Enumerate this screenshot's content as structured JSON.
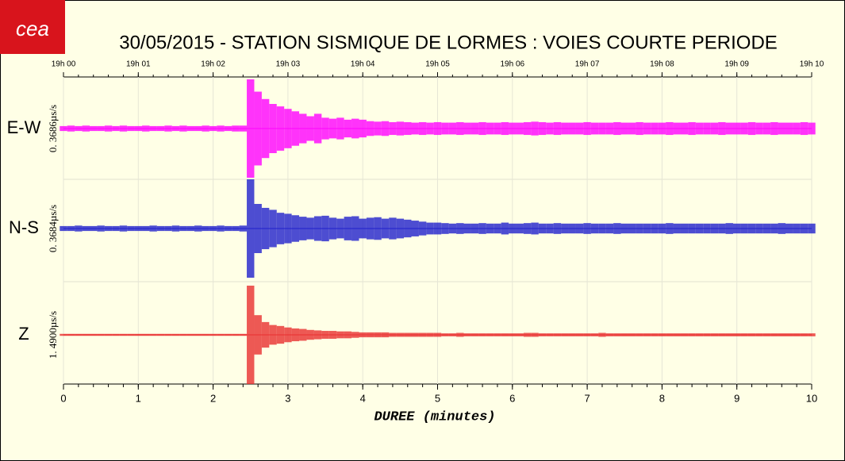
{
  "logo": "cea",
  "chart_data": {
    "type": "seismogram",
    "title": "30/05/2015  -  STATION SISMIQUE DE LORMES : VOIES COURTE PERIODE",
    "xlabel": "DUREE (minutes)",
    "xlim": [
      0,
      10
    ],
    "xticks": [
      0,
      1,
      2,
      3,
      4,
      5,
      6,
      7,
      8,
      9,
      10
    ],
    "x2ticks": [
      {
        "value": 0,
        "label": "19h 00"
      },
      {
        "value": 1,
        "label": "19h 01"
      },
      {
        "value": 2,
        "label": "19h 02"
      },
      {
        "value": 3,
        "label": "19h 03"
      },
      {
        "value": 4,
        "label": "19h 04"
      },
      {
        "value": 5,
        "label": "19h 05"
      },
      {
        "value": 6,
        "label": "19h 06"
      },
      {
        "value": 7,
        "label": "19h 07"
      },
      {
        "value": 8,
        "label": "19h 08"
      },
      {
        "value": 9,
        "label": "19h 09"
      },
      {
        "value": 10,
        "label": "19h 10"
      }
    ],
    "x": [
      0,
      0.1,
      0.2,
      0.3,
      0.4,
      0.5,
      0.6,
      0.7,
      0.8,
      0.9,
      1,
      1.1,
      1.2,
      1.3,
      1.4,
      1.5,
      1.6,
      1.7,
      1.8,
      1.9,
      2,
      2.1,
      2.2,
      2.3,
      2.4,
      2.5,
      2.6,
      2.7,
      2.8,
      2.9,
      3,
      3.1,
      3.2,
      3.3,
      3.4,
      3.5,
      3.6,
      3.7,
      3.8,
      3.9,
      4,
      4.1,
      4.2,
      4.3,
      4.4,
      4.5,
      4.6,
      4.7,
      4.8,
      4.9,
      5,
      5.1,
      5.2,
      5.3,
      5.4,
      5.5,
      5.6,
      5.7,
      5.8,
      5.9,
      6,
      6.1,
      6.2,
      6.3,
      6.4,
      6.5,
      6.6,
      6.7,
      6.8,
      6.9,
      7,
      7.1,
      7.2,
      7.3,
      7.4,
      7.5,
      7.6,
      7.7,
      7.8,
      7.9,
      8,
      8.1,
      8.2,
      8.3,
      8.4,
      8.5,
      8.6,
      8.7,
      8.8,
      8.9,
      9,
      9.1,
      9.2,
      9.3,
      9.4,
      9.5,
      9.6,
      9.7,
      9.8,
      9.9,
      10
    ],
    "series": [
      {
        "name": "E-W",
        "scale_label": "0. 3686µs/s",
        "color": "#ff00ff",
        "values": [
          0.05,
          0.06,
          0.05,
          0.06,
          0.05,
          0.05,
          0.06,
          0.05,
          0.06,
          0.05,
          0.05,
          0.06,
          0.05,
          0.05,
          0.06,
          0.05,
          0.06,
          0.05,
          0.05,
          0.06,
          0.05,
          0.06,
          0.05,
          0.06,
          0.06,
          1.0,
          0.75,
          0.6,
          0.5,
          0.45,
          0.4,
          0.35,
          0.3,
          0.25,
          0.3,
          0.22,
          0.2,
          0.22,
          0.18,
          0.2,
          0.18,
          0.15,
          0.14,
          0.15,
          0.13,
          0.14,
          0.13,
          0.12,
          0.13,
          0.12,
          0.13,
          0.12,
          0.12,
          0.13,
          0.12,
          0.12,
          0.13,
          0.12,
          0.12,
          0.13,
          0.12,
          0.12,
          0.13,
          0.14,
          0.13,
          0.12,
          0.13,
          0.12,
          0.12,
          0.12,
          0.13,
          0.12,
          0.12,
          0.12,
          0.13,
          0.12,
          0.12,
          0.13,
          0.12,
          0.12,
          0.12,
          0.13,
          0.12,
          0.12,
          0.13,
          0.12,
          0.12,
          0.12,
          0.13,
          0.12,
          0.12,
          0.12,
          0.13,
          0.12,
          0.12,
          0.13,
          0.12,
          0.12,
          0.12,
          0.13,
          0.12
        ]
      },
      {
        "name": "N-S",
        "scale_label": "0. 3684µs/s",
        "color": "#2020cc",
        "values": [
          0.05,
          0.05,
          0.06,
          0.05,
          0.05,
          0.06,
          0.05,
          0.05,
          0.06,
          0.05,
          0.05,
          0.05,
          0.06,
          0.05,
          0.05,
          0.06,
          0.05,
          0.05,
          0.06,
          0.05,
          0.05,
          0.06,
          0.05,
          0.05,
          0.06,
          1.0,
          0.5,
          0.42,
          0.38,
          0.32,
          0.3,
          0.27,
          0.24,
          0.22,
          0.25,
          0.26,
          0.22,
          0.2,
          0.24,
          0.25,
          0.2,
          0.22,
          0.23,
          0.2,
          0.22,
          0.2,
          0.18,
          0.16,
          0.14,
          0.12,
          0.12,
          0.11,
          0.1,
          0.11,
          0.1,
          0.1,
          0.11,
          0.1,
          0.1,
          0.12,
          0.1,
          0.1,
          0.11,
          0.12,
          0.1,
          0.1,
          0.11,
          0.1,
          0.1,
          0.1,
          0.11,
          0.1,
          0.1,
          0.1,
          0.11,
          0.1,
          0.1,
          0.1,
          0.1,
          0.1,
          0.1,
          0.11,
          0.1,
          0.1,
          0.1,
          0.1,
          0.1,
          0.1,
          0.1,
          0.11,
          0.1,
          0.1,
          0.1,
          0.1,
          0.1,
          0.1,
          0.11,
          0.1,
          0.1,
          0.1,
          0.1
        ]
      },
      {
        "name": "Z",
        "scale_label": "1. 4900µs/s",
        "color": "#e83030",
        "values": [
          0.02,
          0.02,
          0.02,
          0.02,
          0.02,
          0.02,
          0.02,
          0.02,
          0.02,
          0.02,
          0.02,
          0.02,
          0.02,
          0.02,
          0.02,
          0.02,
          0.02,
          0.02,
          0.02,
          0.02,
          0.02,
          0.02,
          0.02,
          0.02,
          0.02,
          1.0,
          0.4,
          0.26,
          0.2,
          0.18,
          0.15,
          0.13,
          0.12,
          0.1,
          0.09,
          0.08,
          0.08,
          0.07,
          0.07,
          0.06,
          0.05,
          0.05,
          0.05,
          0.05,
          0.04,
          0.04,
          0.04,
          0.04,
          0.04,
          0.04,
          0.04,
          0.03,
          0.03,
          0.04,
          0.03,
          0.03,
          0.03,
          0.03,
          0.03,
          0.03,
          0.03,
          0.03,
          0.04,
          0.04,
          0.03,
          0.03,
          0.03,
          0.03,
          0.03,
          0.03,
          0.03,
          0.03,
          0.04,
          0.03,
          0.03,
          0.03,
          0.03,
          0.03,
          0.03,
          0.03,
          0.03,
          0.03,
          0.03,
          0.03,
          0.03,
          0.03,
          0.03,
          0.03,
          0.03,
          0.03,
          0.03,
          0.03,
          0.03,
          0.03,
          0.03,
          0.03,
          0.03,
          0.03,
          0.03,
          0.03,
          0.03
        ]
      }
    ]
  }
}
